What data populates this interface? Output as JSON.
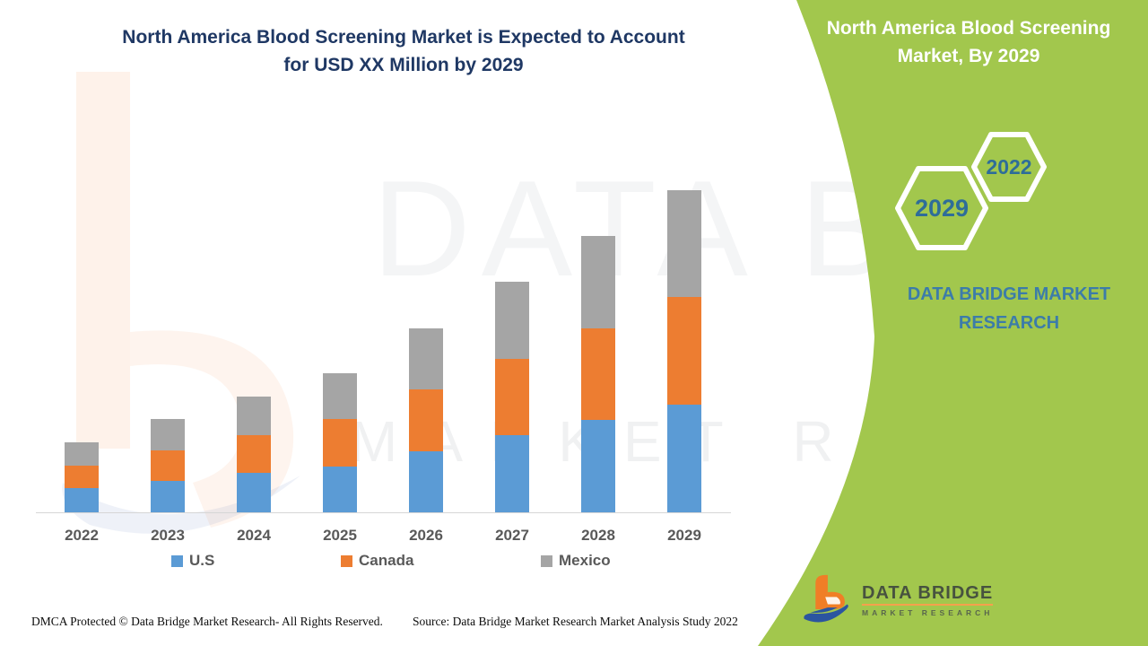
{
  "header": {
    "title_line1": "North America Blood Screening Market is Expected to Account",
    "title_line2": "for USD XX Million by 2029",
    "title_color": "#1f3864"
  },
  "side_panel": {
    "title_line1": "North America Blood Screening",
    "title_line2": "Market, By 2029",
    "bg_color": "#a2c74d",
    "hexagon_small_year": "2022",
    "hexagon_large_year": "2029",
    "year_text_color": "#2e6d99",
    "brand_line1": "DATA BRIDGE MARKET",
    "brand_line2": "RESEARCH",
    "brand_color": "#3c7ca9"
  },
  "chart_data": {
    "type": "bar",
    "stacked": true,
    "title": "North America Blood Screening Market is Expected to Account for USD XX Million by 2029",
    "xlabel": "",
    "ylabel": "",
    "units": "USD Million (actual values masked as XX)",
    "value_axis_visible": false,
    "gridlines": false,
    "legend_position": "bottom",
    "categories": [
      "2022",
      "2023",
      "2024",
      "2025",
      "2026",
      "2027",
      "2028",
      "2029"
    ],
    "series": [
      {
        "name": "U.S",
        "color": "#5b9bd5",
        "values": [
          27,
          35,
          44,
          51,
          68,
          86,
          103,
          120
        ]
      },
      {
        "name": "Canada",
        "color": "#ed7d31",
        "values": [
          25,
          34,
          42,
          53,
          69,
          85,
          102,
          120
        ]
      },
      {
        "name": "Mexico",
        "color": "#a5a5a5",
        "values": [
          26,
          35,
          43,
          51,
          68,
          86,
          103,
          119
        ]
      }
    ],
    "totals": [
      78,
      104,
      129,
      155,
      205,
      257,
      308,
      359
    ],
    "ylim": [
      0,
      380
    ]
  },
  "watermark": {
    "big_text": "DATA BRIDGE",
    "mid_text": "MARKET RESEARCH"
  },
  "logo": {
    "name": "DATA BRIDGE",
    "subtitle": "MARKET RESEARCH"
  },
  "footer": {
    "left": "DMCA Protected © Data Bridge Market Research- All Rights Reserved.",
    "right": "Source: Data Bridge Market Research Market Analysis Study 2022"
  }
}
